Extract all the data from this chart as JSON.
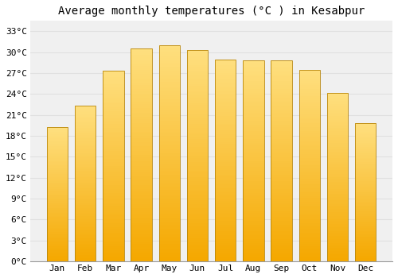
{
  "title": "Average monthly temperatures (°C ) in Kesabpur",
  "months": [
    "Jan",
    "Feb",
    "Mar",
    "Apr",
    "May",
    "Jun",
    "Jul",
    "Aug",
    "Sep",
    "Oct",
    "Nov",
    "Dec"
  ],
  "values": [
    19.2,
    22.3,
    27.3,
    30.5,
    31.0,
    30.3,
    29.0,
    28.8,
    28.8,
    27.5,
    24.2,
    19.8
  ],
  "bar_color_bottom": "#F5A800",
  "bar_color_top": "#FFE080",
  "bar_edge_color": "#B8860B",
  "background_color": "#ffffff",
  "plot_bg_color": "#f0f0f0",
  "grid_color": "#e0e0e0",
  "yticks": [
    0,
    3,
    6,
    9,
    12,
    15,
    18,
    21,
    24,
    27,
    30,
    33
  ],
  "ylim": [
    0,
    34.5
  ],
  "title_fontsize": 10,
  "tick_fontsize": 8,
  "font_family": "monospace",
  "bar_width": 0.75,
  "n_grad": 100
}
